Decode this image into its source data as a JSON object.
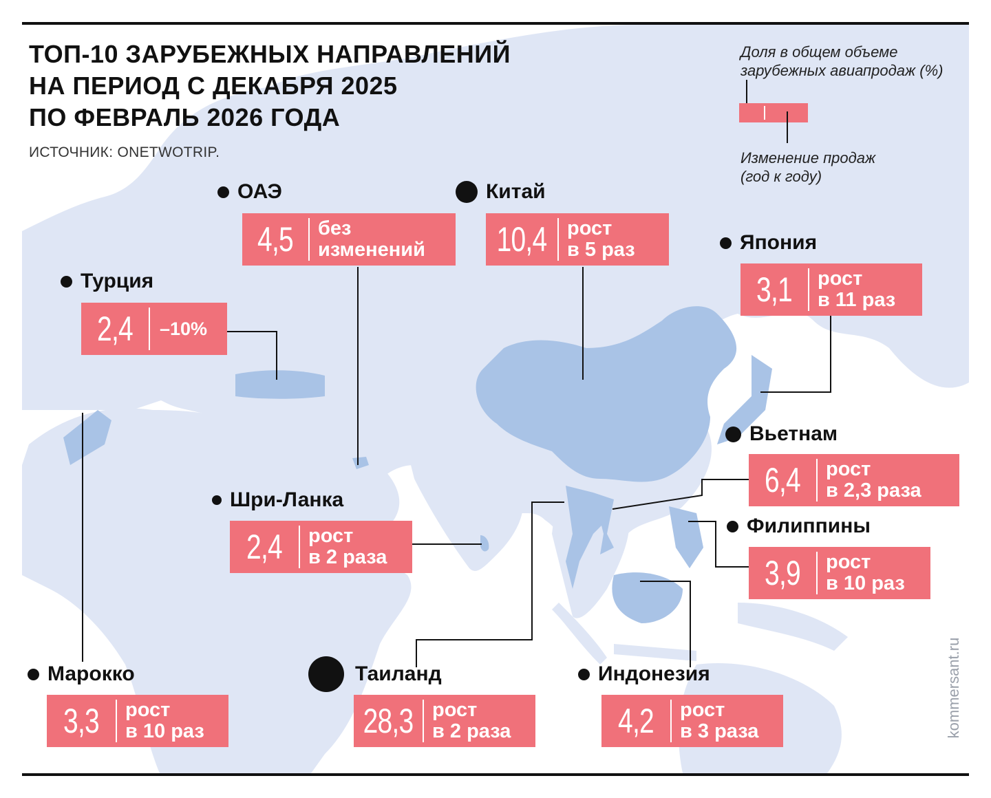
{
  "header": {
    "title_lines": [
      "ТОП-10 ЗАРУБЕЖНЫХ НАПРАВЛЕНИЙ",
      "НА ПЕРИОД С ДЕКАБРЯ 2025",
      "ПО ФЕВРАЛЬ 2026 ГОДА"
    ],
    "source": "ИСТОЧНИК: ONETWOTRIP."
  },
  "legend": {
    "share_label": "Доля в общем объеме\nзарубежных авиапродаж (%)",
    "change_label": "Изменение продаж\n(год к году)"
  },
  "destinations": [
    {
      "name": "ОАЭ",
      "share": "4,5",
      "change": "без\nизменений"
    },
    {
      "name": "Китай",
      "share": "10,4",
      "change": "рост\nв 5 раз"
    },
    {
      "name": "Япония",
      "share": "3,1",
      "change": "рост\nв 11 раз"
    },
    {
      "name": "Турция",
      "share": "2,4",
      "change": "–10%"
    },
    {
      "name": "Вьетнам",
      "share": "6,4",
      "change": "рост\nв 2,3 раза"
    },
    {
      "name": "Шри-Ланка",
      "share": "2,4",
      "change": "рост\nв 2 раза"
    },
    {
      "name": "Филиппины",
      "share": "3,9",
      "change": "рост\nв 10 раз"
    },
    {
      "name": "Марокко",
      "share": "3,3",
      "change": "рост\nв 10 раз"
    },
    {
      "name": "Таиланд",
      "share": "28,3",
      "change": "рост\nв 2 раза"
    },
    {
      "name": "Индонезия",
      "share": "4,2",
      "change": "рост\nв 3 раза"
    }
  ],
  "colors": {
    "box": "#f0717a",
    "land": "#dfe6f5",
    "highlight": "#a9c3e6",
    "text": "#111111"
  },
  "footer": {
    "credit": "kommersant.ru"
  }
}
